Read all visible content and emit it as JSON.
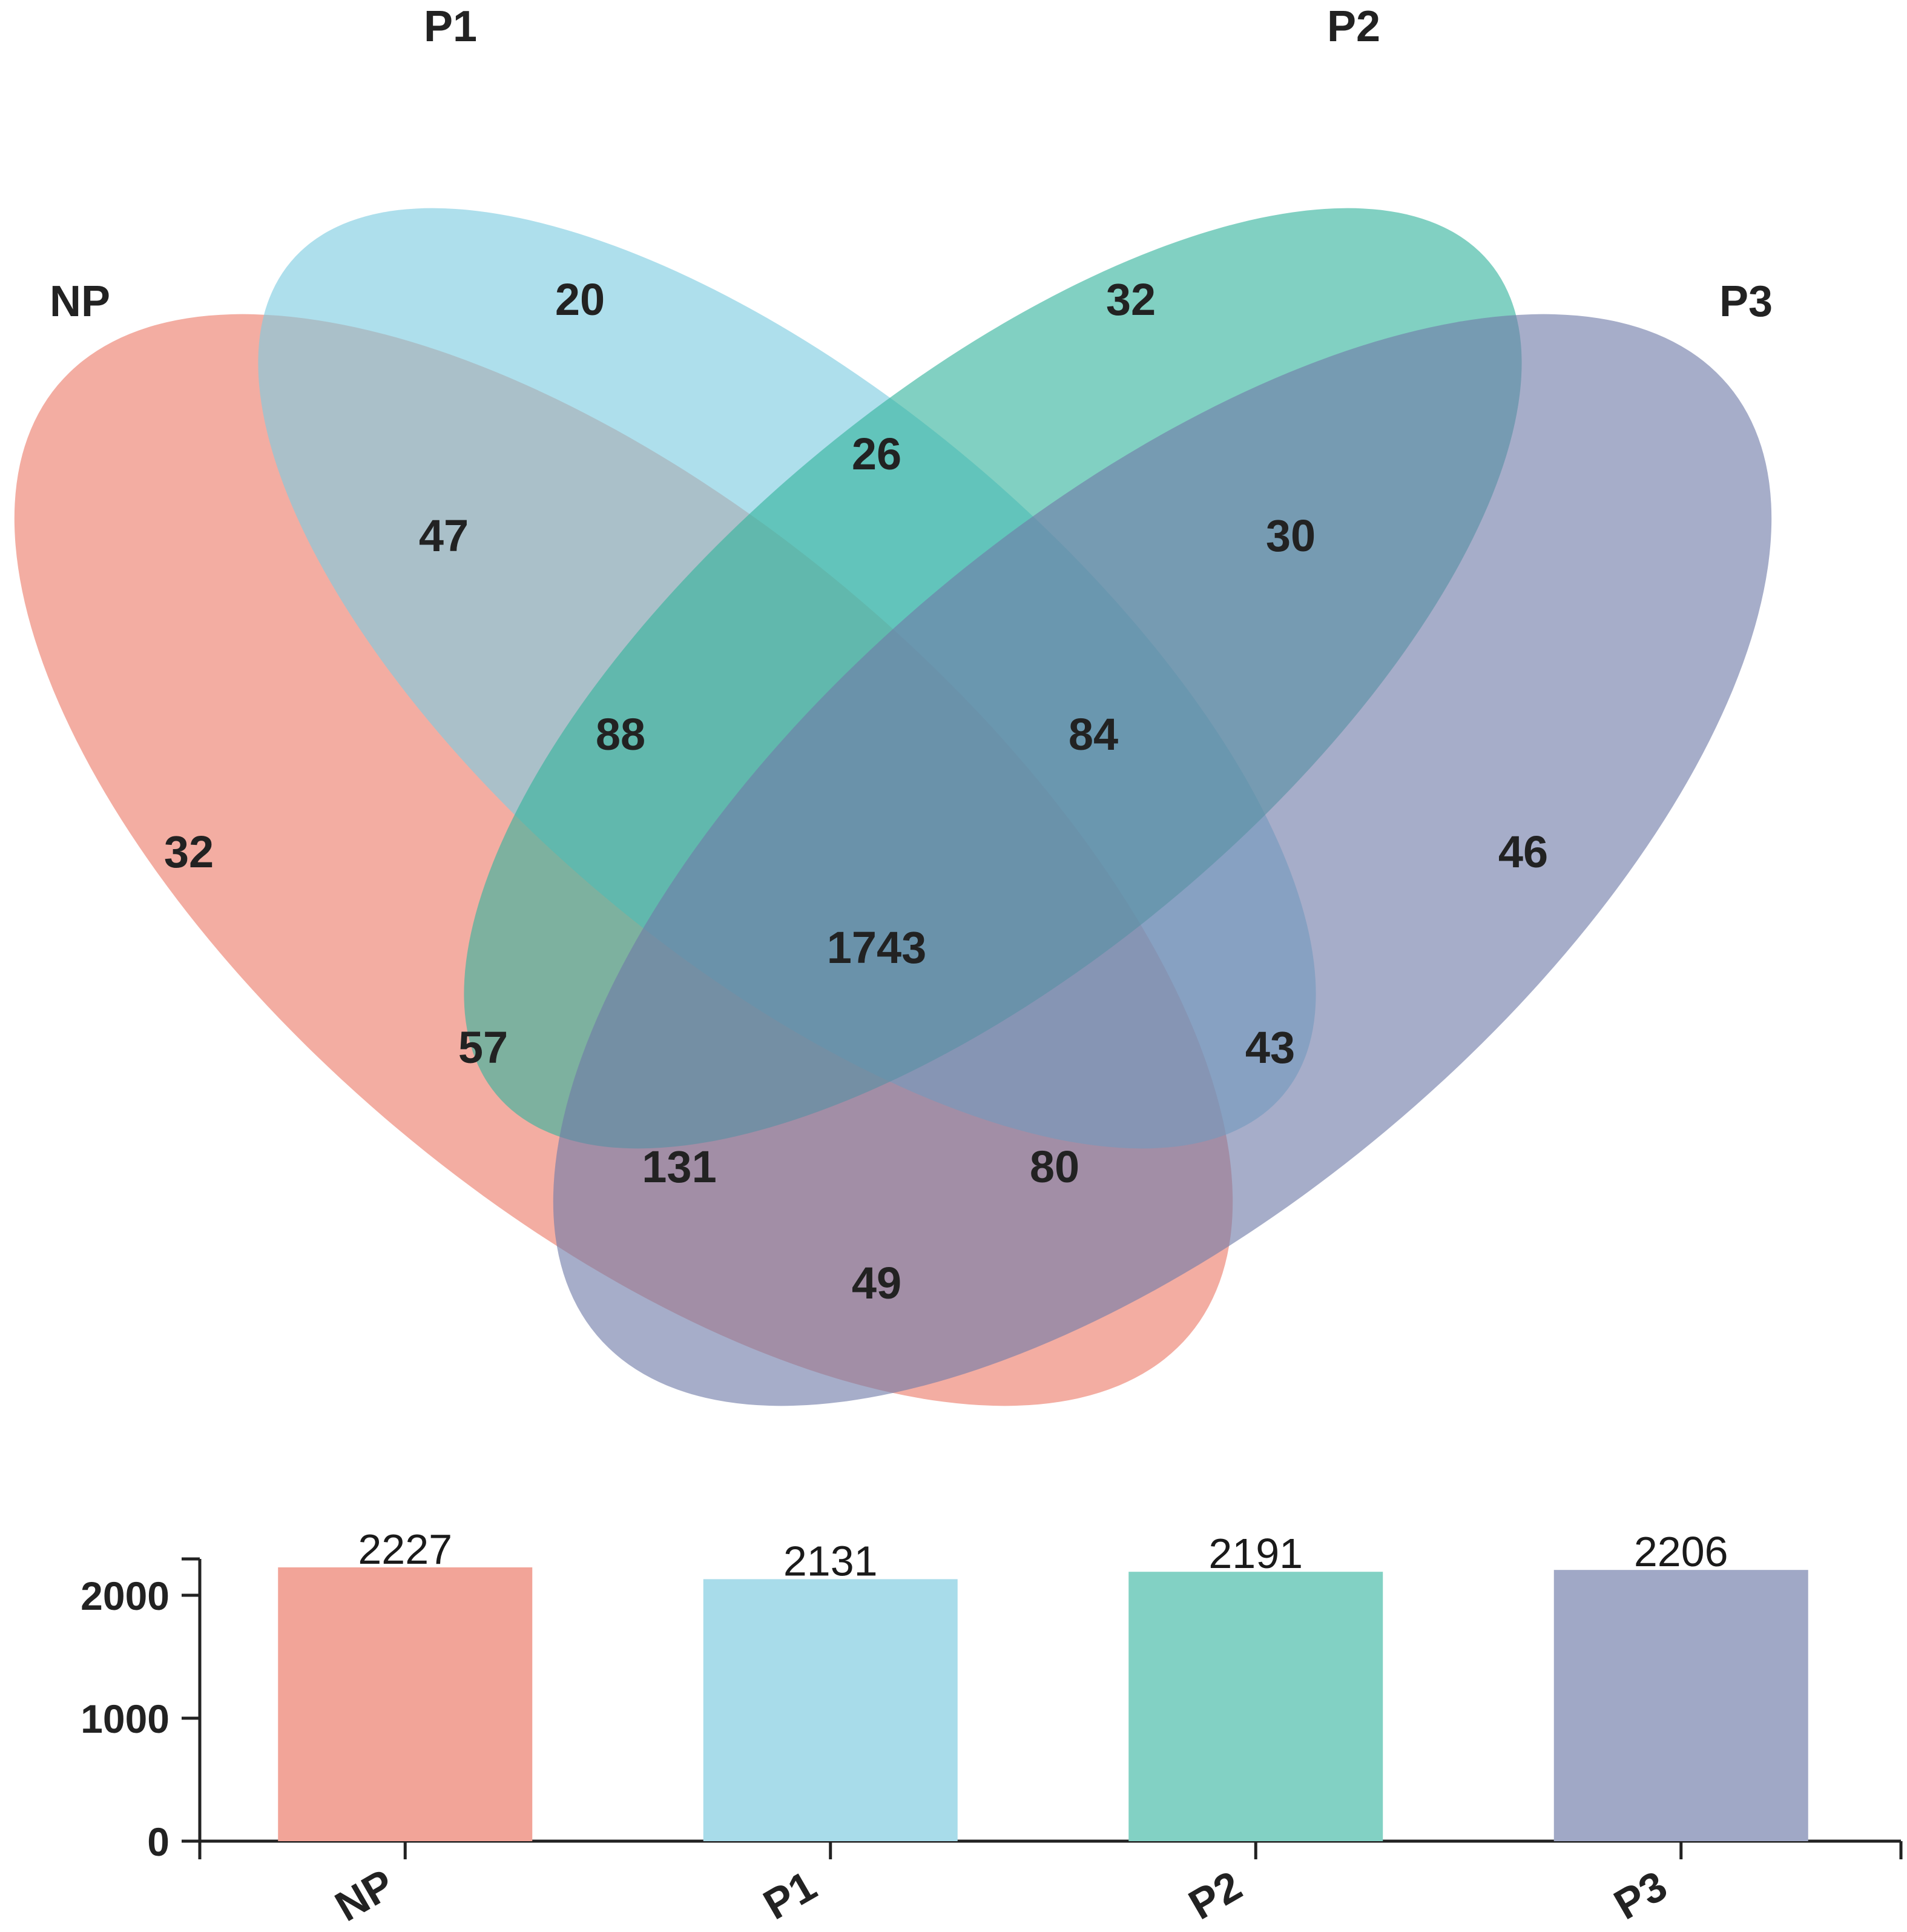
{
  "chart_data": [
    {
      "type": "venn",
      "sets": [
        {
          "name": "NP",
          "color": "#ec7a69"
        },
        {
          "name": "P1",
          "color": "#7ccce0"
        },
        {
          "name": "P2",
          "color": "#33b39c"
        },
        {
          "name": "P3",
          "color": "#6f7aa8"
        }
      ],
      "regions": [
        {
          "sets": [
            "NP"
          ],
          "value": 32
        },
        {
          "sets": [
            "P1"
          ],
          "value": 20
        },
        {
          "sets": [
            "P2"
          ],
          "value": 32
        },
        {
          "sets": [
            "P3"
          ],
          "value": 46
        },
        {
          "sets": [
            "NP",
            "P1"
          ],
          "value": 47
        },
        {
          "sets": [
            "P1",
            "P2"
          ],
          "value": 26
        },
        {
          "sets": [
            "P2",
            "P3"
          ],
          "value": 30
        },
        {
          "sets": [
            "NP",
            "P2"
          ],
          "value": 57
        },
        {
          "sets": [
            "P1",
            "P3"
          ],
          "value": 43
        },
        {
          "sets": [
            "NP",
            "P3"
          ],
          "value": 49
        },
        {
          "sets": [
            "NP",
            "P1",
            "P2"
          ],
          "value": 88
        },
        {
          "sets": [
            "P1",
            "P2",
            "P3"
          ],
          "value": 84
        },
        {
          "sets": [
            "NP",
            "P2",
            "P3"
          ],
          "value": 131
        },
        {
          "sets": [
            "NP",
            "P1",
            "P3"
          ],
          "value": 80
        },
        {
          "sets": [
            "NP",
            "P1",
            "P2",
            "P3"
          ],
          "value": 1743
        }
      ]
    },
    {
      "type": "bar",
      "categories": [
        "NP",
        "P1",
        "P2",
        "P3"
      ],
      "values": [
        2227,
        2131,
        2191,
        2206
      ],
      "colors": [
        "#f2a498",
        "#a8dcea",
        "#82d1c4",
        "#a0a8c6"
      ],
      "ylim": [
        0,
        2000
      ],
      "yticks": [
        0,
        1000,
        2000
      ],
      "data_labels": [
        "2227",
        "2131",
        "2191",
        "2206"
      ]
    }
  ]
}
